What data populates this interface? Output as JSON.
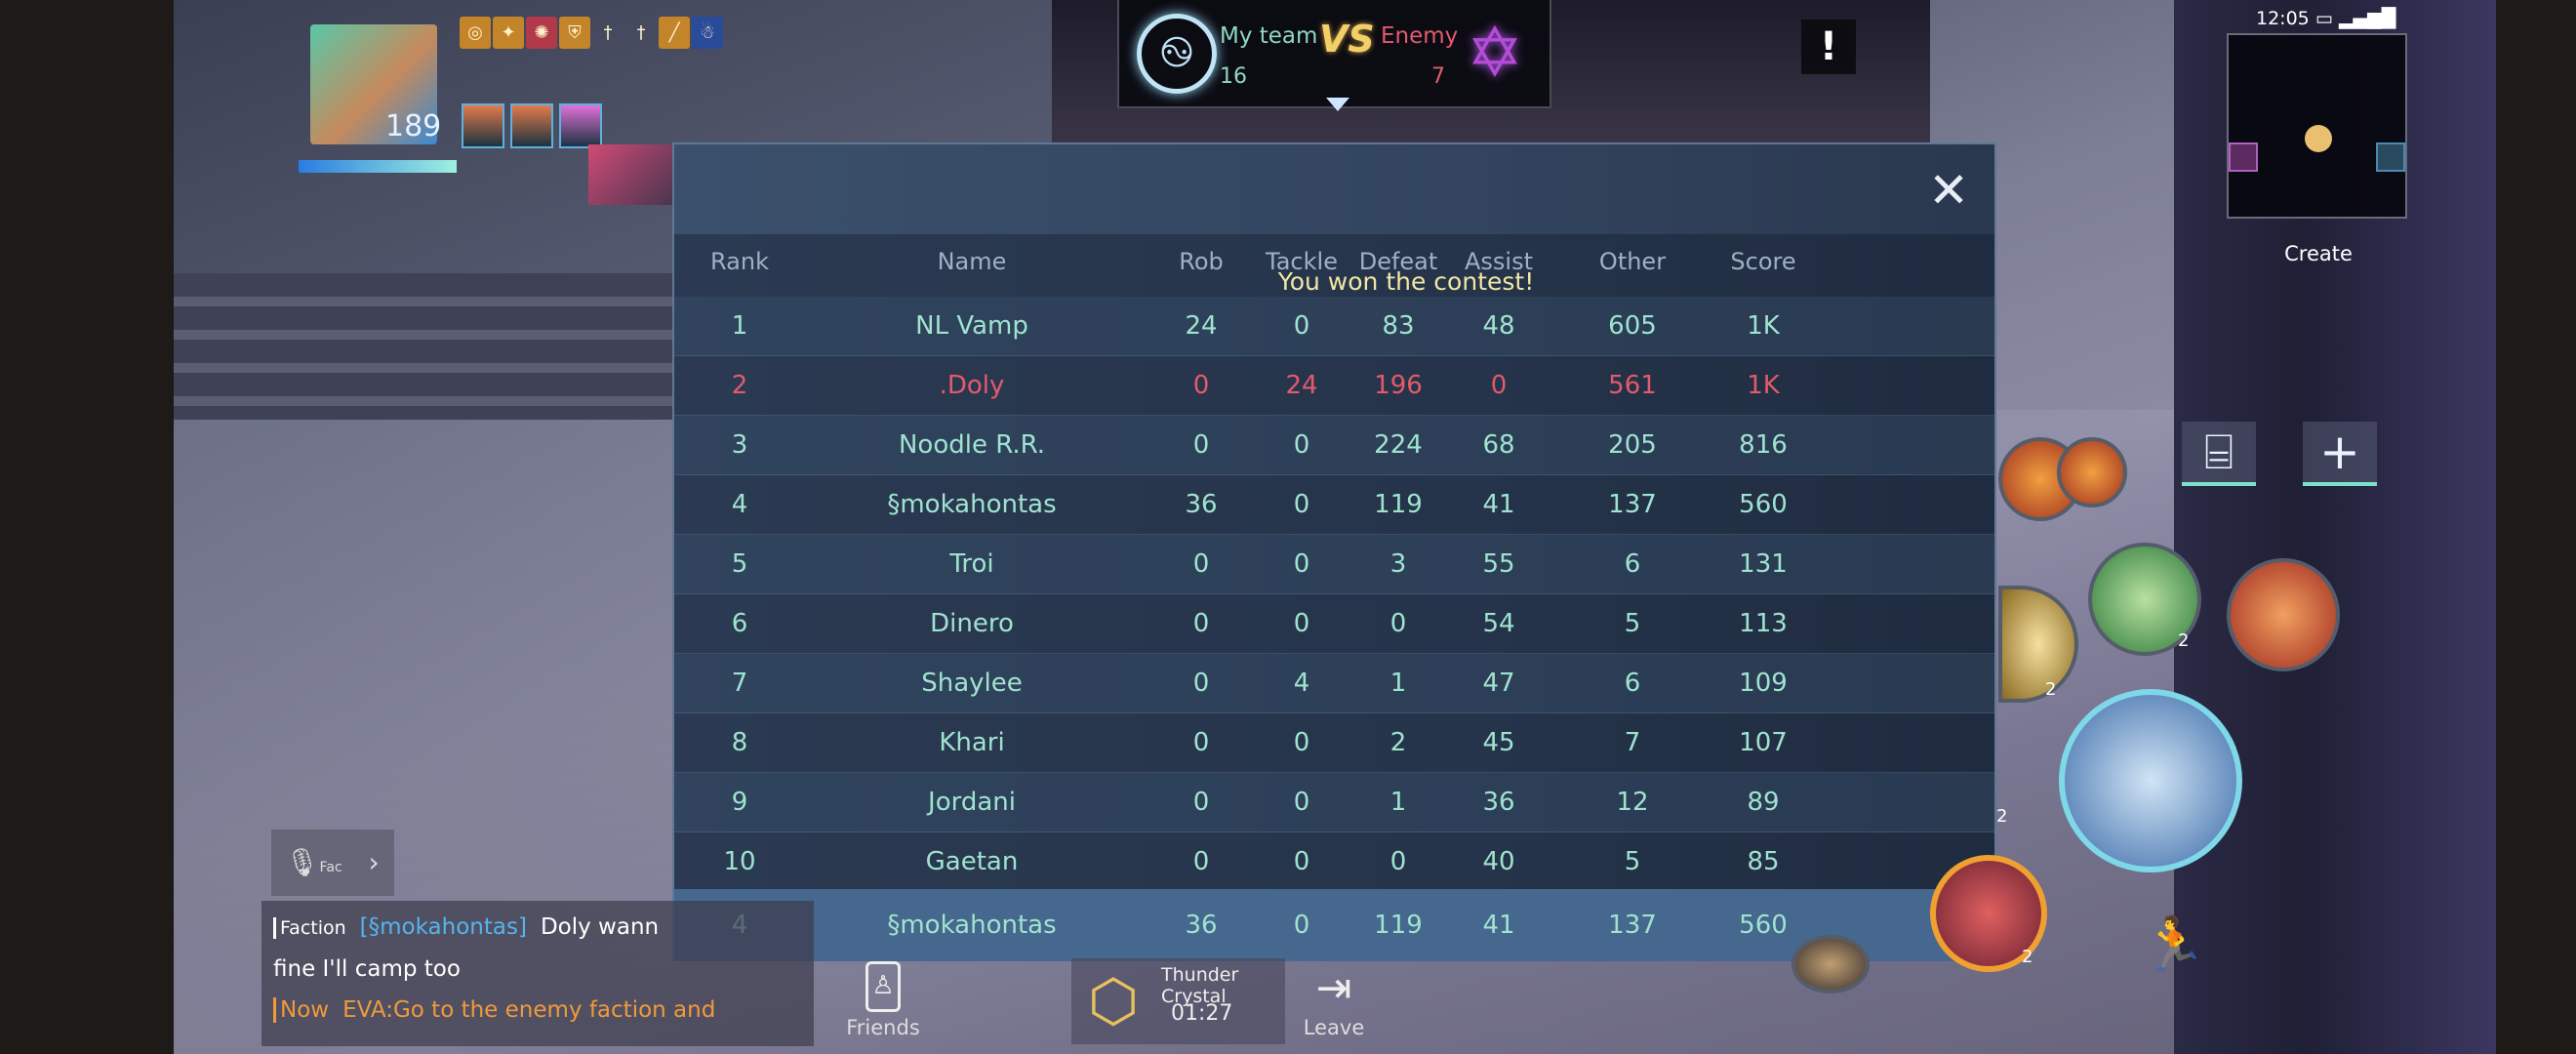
{
  "top_bar": {
    "my_team_label": "My team",
    "my_team_score": "16",
    "vs_label": "VS",
    "enemy_label": "Enemy",
    "enemy_score": "7",
    "alert_label": "!"
  },
  "player": {
    "level": "189"
  },
  "status": {
    "time": "12:05"
  },
  "minimap": {
    "create_label": "Create"
  },
  "scoreboard": {
    "columns": {
      "rank": "Rank",
      "name": "Name",
      "rob": "Rob",
      "tackle": "Tackle",
      "defeat": "Defeat",
      "assist": "Assist",
      "other": "Other",
      "score": "Score"
    },
    "banner": "You won the contest!",
    "close_icon": "close-icon",
    "colors": {
      "ally": "#9fe3cf",
      "enemy": "#e35a6c",
      "highlight_row": "#46678e"
    },
    "rows": [
      {
        "rank": "1",
        "name": "NL Vamp",
        "rob": "24",
        "tackle": "0",
        "defeat": "83",
        "assist": "48",
        "other": "605",
        "score": "1K",
        "team": "ally"
      },
      {
        "rank": "2",
        "name": ".Doly",
        "rob": "0",
        "tackle": "24",
        "defeat": "196",
        "assist": "0",
        "other": "561",
        "score": "1K",
        "team": "enemy"
      },
      {
        "rank": "3",
        "name": "Noodle R.R.",
        "rob": "0",
        "tackle": "0",
        "defeat": "224",
        "assist": "68",
        "other": "205",
        "score": "816",
        "team": "ally"
      },
      {
        "rank": "4",
        "name": "§mokahontas",
        "rob": "36",
        "tackle": "0",
        "defeat": "119",
        "assist": "41",
        "other": "137",
        "score": "560",
        "team": "ally"
      },
      {
        "rank": "5",
        "name": "Troi",
        "rob": "0",
        "tackle": "0",
        "defeat": "3",
        "assist": "55",
        "other": "6",
        "score": "131",
        "team": "ally"
      },
      {
        "rank": "6",
        "name": "Dinero",
        "rob": "0",
        "tackle": "0",
        "defeat": "0",
        "assist": "54",
        "other": "5",
        "score": "113",
        "team": "ally"
      },
      {
        "rank": "7",
        "name": "Shaylee",
        "rob": "0",
        "tackle": "4",
        "defeat": "1",
        "assist": "47",
        "other": "6",
        "score": "109",
        "team": "ally"
      },
      {
        "rank": "8",
        "name": "Khari",
        "rob": "0",
        "tackle": "0",
        "defeat": "2",
        "assist": "45",
        "other": "7",
        "score": "107",
        "team": "ally"
      },
      {
        "rank": "9",
        "name": "Jordani",
        "rob": "0",
        "tackle": "0",
        "defeat": "1",
        "assist": "36",
        "other": "12",
        "score": "89",
        "team": "ally"
      },
      {
        "rank": "10",
        "name": "Gaetan",
        "rob": "0",
        "tackle": "0",
        "defeat": "0",
        "assist": "40",
        "other": "5",
        "score": "85",
        "team": "ally"
      }
    ],
    "me": {
      "rank": "4",
      "name": "§mokahontas",
      "rob": "36",
      "tackle": "0",
      "defeat": "119",
      "assist": "41",
      "other": "137",
      "score": "560"
    }
  },
  "chat": {
    "voice_label": "Fac",
    "channel": "Faction",
    "sender": "[§mokahontas]",
    "message_1": "Doly wann",
    "message_2": "fine I'll camp too",
    "system_tag": "Now",
    "system_message": "EVA:Go to the enemy faction and"
  },
  "bottom": {
    "friends_label": "Friends",
    "event_name": "Thunder Crystal",
    "event_timer": "01:27",
    "leave_label": "Leave"
  },
  "skills": {
    "charge_counts": [
      "2",
      "2",
      "2",
      "2"
    ]
  }
}
